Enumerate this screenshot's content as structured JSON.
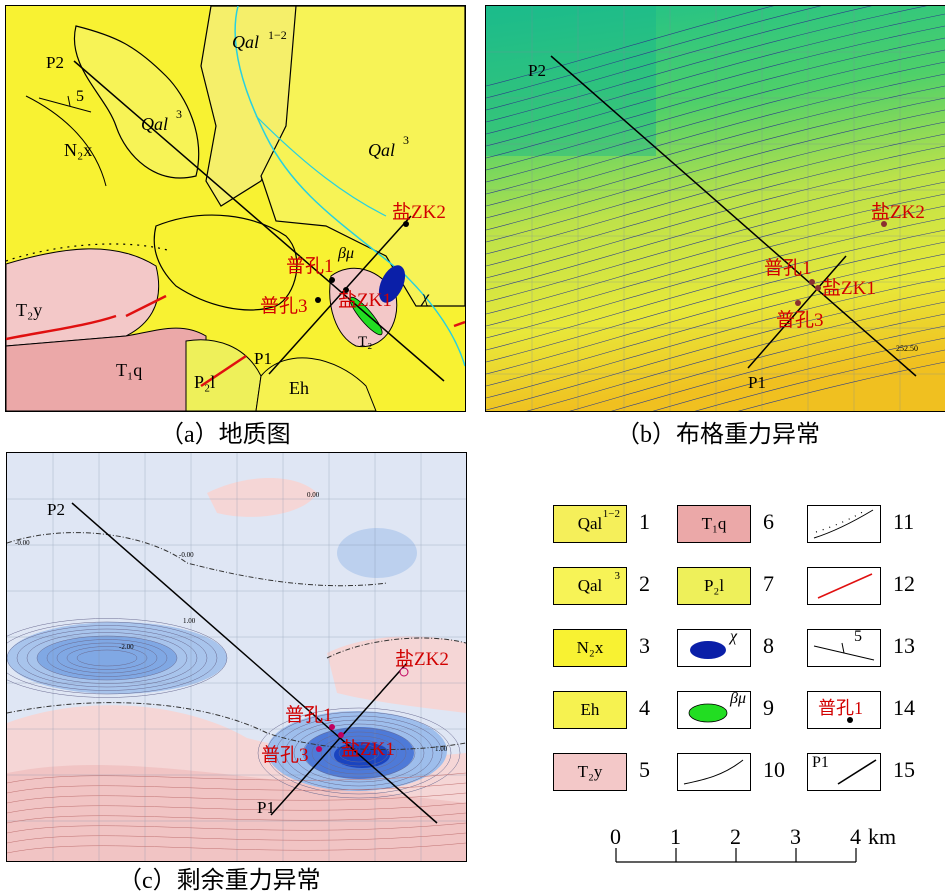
{
  "panels": {
    "a": {
      "caption": "（a）地质图",
      "labels": {
        "qal12": "Qal",
        "qal12_sup": "1−2",
        "qal3_a": "Qal",
        "qal3_a_sup": "3",
        "qal3_b": "Qal",
        "qal3_b_sup": "3",
        "n2x": "N₂x",
        "t2y": "T₂y",
        "t1q": "T₁q",
        "p2l": "P₂l",
        "eh": "Eh",
        "t2": "T₂",
        "beta_mu": "βμ",
        "chi": "χ",
        "dip": "5",
        "p1": "P1",
        "p2": "P2"
      },
      "wells": {
        "zk2": "盐ZK2",
        "pk1": "普孔1",
        "pk3": "普孔3",
        "zk1": "盐ZK1"
      }
    },
    "b": {
      "caption": "（b）布格重力异常",
      "labels": {
        "p1": "P1",
        "p2": "P2",
        "contour": "252.50"
      },
      "wells": {
        "zk2": "盐ZK2",
        "pk1": "普孔1",
        "pk3": "普孔3",
        "zk1": "盐ZK1"
      }
    },
    "c": {
      "caption": "（c）剩余重力异常",
      "labels": {
        "p1": "P1",
        "p2": "P2",
        "c1": "-0.00",
        "c2": "1.00",
        "c3": "-2.00",
        "c4": "0.00",
        "c5": "1.00",
        "c6": "-0.00"
      },
      "wells": {
        "zk2": "盐ZK2",
        "pk1": "普孔1",
        "pk3": "普孔3",
        "zk1": "盐ZK1"
      }
    }
  },
  "legend": {
    "items": [
      {
        "num": "1",
        "text": "Qal",
        "sup": "1−2",
        "kind": "fill",
        "color": "#f5ef5a"
      },
      {
        "num": "2",
        "text": "Qal",
        "sup": "3",
        "kind": "fill",
        "color": "#f7f356"
      },
      {
        "num": "3",
        "text": "N₂x",
        "sup": "",
        "kind": "fill",
        "color": "#f8f232"
      },
      {
        "num": "4",
        "text": "Eh",
        "sup": "",
        "kind": "fill",
        "color": "#f6f250"
      },
      {
        "num": "5",
        "text": "T₂y",
        "sup": "",
        "kind": "fill",
        "color": "#f3c8c8"
      },
      {
        "num": "6",
        "text": "T₁q",
        "sup": "",
        "kind": "fill",
        "color": "#eba8a8"
      },
      {
        "num": "7",
        "text": "P₂l",
        "sup": "",
        "kind": "fill",
        "color": "#eef05a"
      },
      {
        "num": "8",
        "text": "χ",
        "sup": "",
        "kind": "blue-ellipse",
        "color": "#0a1fa8"
      },
      {
        "num": "9",
        "text": "βμ",
        "sup": "",
        "kind": "green-ellipse",
        "color": "#22dd22"
      },
      {
        "num": "10",
        "text": "",
        "sup": "",
        "kind": "boundary-line",
        "color": "#000000"
      },
      {
        "num": "11",
        "text": "",
        "sup": "",
        "kind": "dotted-boundary",
        "color": "#000000"
      },
      {
        "num": "12",
        "text": "",
        "sup": "",
        "kind": "fault",
        "color": "#e01010"
      },
      {
        "num": "13",
        "text": "5",
        "sup": "",
        "kind": "attitude",
        "color": "#000000"
      },
      {
        "num": "14",
        "text": "普孔1",
        "sup": "",
        "kind": "well",
        "color": "#d10000"
      },
      {
        "num": "15",
        "text": "P1",
        "sup": "",
        "kind": "profile",
        "color": "#000000"
      }
    ]
  },
  "scale_bar": {
    "ticks": [
      "0",
      "1",
      "2",
      "3",
      "4"
    ],
    "unit": "km"
  }
}
